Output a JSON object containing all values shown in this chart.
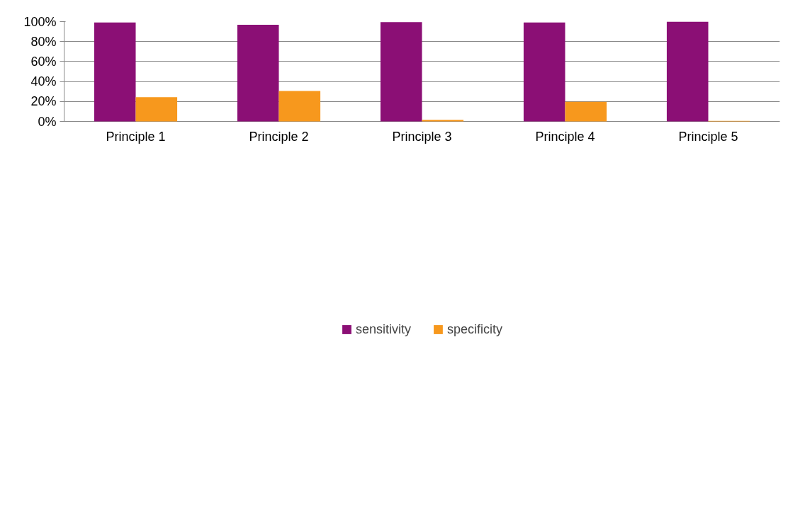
{
  "chart_data": {
    "type": "bar",
    "categories": [
      "Principle 1",
      "Principle 2",
      "Principle 3",
      "Principle 4",
      "Principle 5"
    ],
    "series": [
      {
        "name": "sensitivity",
        "color": "#8b0f75",
        "values": [
          99.1,
          96.8,
          99.5,
          99.1,
          99.9
        ]
      },
      {
        "name": "specificity",
        "color": "#f7981d",
        "values": [
          24.3,
          30.5,
          1.6,
          19.6,
          0.5
        ]
      }
    ],
    "ylim": [
      0,
      100
    ],
    "yticks": [
      {
        "value": 0,
        "label": "0%"
      },
      {
        "value": 20,
        "label": "20%"
      },
      {
        "value": 40,
        "label": "40%"
      },
      {
        "value": 60,
        "label": "60%"
      },
      {
        "value": 80,
        "label": "80%"
      },
      {
        "value": 100,
        "label": "100%"
      }
    ],
    "grid": "y",
    "legend": "bottom"
  }
}
